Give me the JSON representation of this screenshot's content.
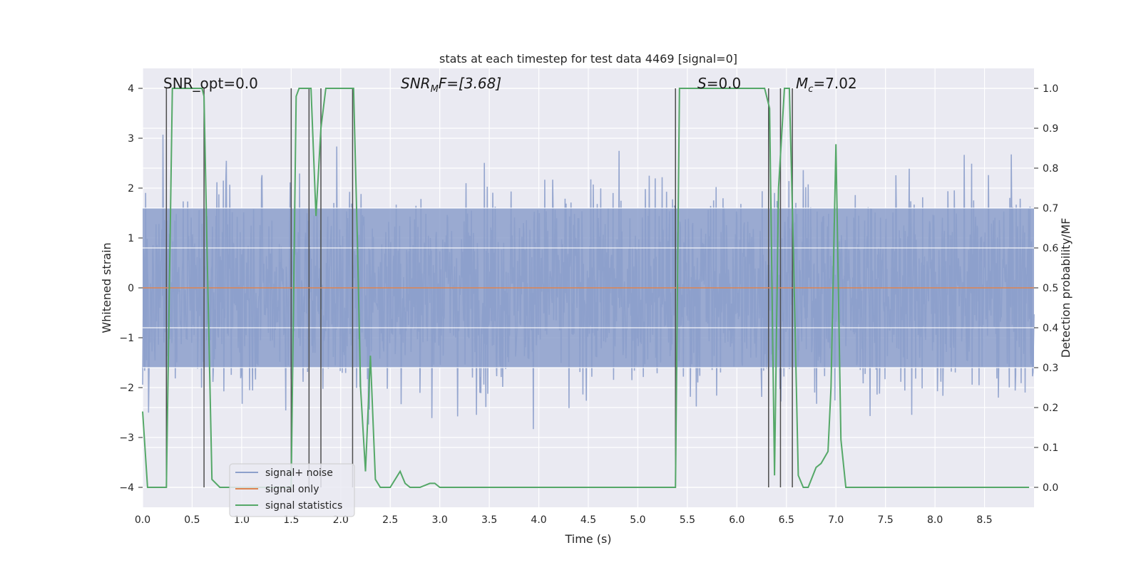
{
  "chart_data": {
    "type": "line",
    "title": "stats at each timestep for test data 4469 [signal=0]",
    "xlabel": "Time (s)",
    "ylabel_left": "Whitened strain",
    "ylabel_right": "Detection probability/MF",
    "xlim": [
      0.0,
      9.0
    ],
    "ylim_left": [
      -4.4,
      4.4
    ],
    "ylim_right": [
      -0.05,
      1.05
    ],
    "x_ticks": [
      0.0,
      0.5,
      1.0,
      1.5,
      2.0,
      2.5,
      3.0,
      3.5,
      4.0,
      4.5,
      5.0,
      5.5,
      6.0,
      6.5,
      7.0,
      7.5,
      8.0,
      8.5
    ],
    "x_tick_labels": [
      "0.0",
      "0.5",
      "1.0",
      "1.5",
      "2.0",
      "2.5",
      "3.0",
      "3.5",
      "4.0",
      "4.5",
      "5.0",
      "5.5",
      "6.0",
      "6.5",
      "7.0",
      "7.5",
      "8.0",
      "8.5"
    ],
    "y_left_ticks": [
      -4,
      -3,
      -2,
      -1,
      0,
      1,
      2,
      3,
      4
    ],
    "y_left_tick_labels": [
      "−4",
      "−3",
      "−2",
      "−1",
      "0",
      "1",
      "2",
      "3",
      "4"
    ],
    "y_right_ticks": [
      0.0,
      0.1,
      0.2,
      0.3,
      0.4,
      0.5,
      0.6,
      0.7,
      0.8,
      0.9,
      1.0
    ],
    "y_right_tick_labels": [
      "0.0",
      "0.1",
      "0.2",
      "0.3",
      "0.4",
      "0.5",
      "0.6",
      "0.7",
      "0.8",
      "0.9",
      "1.0"
    ],
    "annotations": {
      "snr_opt": "SNR_opt=0.0",
      "snr_mf_base": "SNR",
      "snr_mf_sub": "M",
      "snr_mf_rest": "F=[3.68]",
      "s_italic": "S",
      "s_rest": "=0.0",
      "mc_base": "M",
      "mc_sub": "c",
      "mc_rest": "=7.02"
    },
    "legend": [
      {
        "label": "signal+ noise",
        "color": "#8da0cb"
      },
      {
        "label": "signal only",
        "color": "#dd8452"
      },
      {
        "label": "signal statistics",
        "color": "#55a868"
      }
    ],
    "colors": {
      "noise": "#8c9fcb",
      "signal": "#dd8452",
      "stats": "#55a868",
      "vlines": "#4d4d4d",
      "plot_bg": "#eaeaf2",
      "grid": "#ffffff"
    },
    "noise_series": {
      "sample_rate_hz": 200,
      "band_low": -1.6,
      "band_high": 1.6,
      "typical_peak_max": 3.2,
      "typical_trough_min": -3.6
    },
    "signal_only": {
      "x": [
        0.0,
        9.0
      ],
      "y": [
        0.0,
        0.0
      ]
    },
    "stats_series": {
      "x": [
        0.0,
        0.05,
        0.1,
        0.2,
        0.24,
        0.27,
        0.3,
        0.6,
        0.62,
        0.65,
        0.7,
        0.78,
        0.83,
        1.5,
        1.55,
        1.58,
        1.7,
        1.75,
        1.8,
        1.85,
        1.9,
        2.13,
        2.17,
        2.2,
        2.25,
        2.3,
        2.35,
        2.4,
        2.5,
        2.6,
        2.65,
        2.7,
        2.8,
        2.9,
        2.95,
        3.0,
        3.05,
        3.1,
        3.2,
        5.38,
        5.42,
        5.48,
        6.28,
        6.33,
        6.38,
        6.42,
        6.48,
        6.53,
        6.57,
        6.62,
        6.67,
        6.72,
        6.8,
        6.85,
        6.92,
        6.95,
        7.0,
        7.05,
        7.1,
        7.15,
        7.2,
        7.25,
        7.3,
        7.35,
        8.95
      ],
      "y": [
        0.19,
        0.0,
        0.0,
        0.0,
        0.0,
        0.5,
        1.0,
        1.0,
        0.98,
        0.6,
        0.02,
        0.0,
        0.0,
        0.0,
        0.98,
        1.0,
        1.0,
        0.68,
        0.9,
        1.0,
        1.0,
        1.0,
        0.6,
        0.25,
        0.04,
        0.33,
        0.02,
        0.0,
        0.0,
        0.04,
        0.01,
        0.0,
        0.0,
        0.01,
        0.01,
        0.0,
        0.0,
        0.0,
        0.0,
        0.0,
        1.0,
        1.0,
        1.0,
        0.95,
        0.03,
        0.75,
        1.0,
        1.0,
        0.6,
        0.03,
        0.0,
        0.0,
        0.05,
        0.06,
        0.09,
        0.25,
        0.86,
        0.12,
        0.0,
        0.0,
        0.0,
        0.0,
        0.0,
        0.0,
        0.0
      ]
    },
    "vertical_lines": {
      "x": [
        0.24,
        0.62,
        1.5,
        1.68,
        1.8,
        2.12,
        5.38,
        6.32,
        6.44,
        6.56
      ],
      "y_top": 1.0,
      "y_bottom": 0.0
    }
  }
}
